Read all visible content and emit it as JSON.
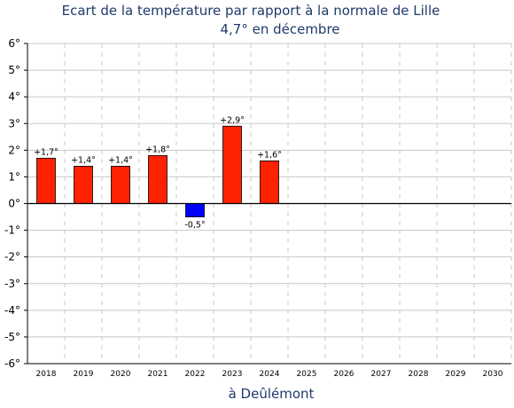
{
  "chart_data": {
    "type": "bar",
    "title": "Ecart de la température par rapport à la normale de Lille",
    "subtitle": "4,7° en décembre",
    "xlabel": "à Deûlémont",
    "ylabel": "",
    "categories": [
      "2018",
      "2019",
      "2020",
      "2021",
      "2022",
      "2023",
      "2024",
      "2025",
      "2026",
      "2027",
      "2028",
      "2029",
      "2030"
    ],
    "values": [
      1.7,
      1.4,
      1.4,
      1.8,
      -0.5,
      2.9,
      1.6,
      null,
      null,
      null,
      null,
      null,
      null
    ],
    "data_labels": [
      "+1,7°",
      "+1,4°",
      "+1,4°",
      "+1,8°",
      "-0,5°",
      "+2,9°",
      "+1,6°",
      "",
      "",
      "",
      "",
      "",
      ""
    ],
    "ylim": [
      -6,
      6
    ],
    "yticks": [
      6,
      5,
      4,
      3,
      2,
      1,
      0,
      -1,
      -2,
      -3,
      -4,
      -5,
      -6
    ],
    "ytick_labels": [
      "6°",
      "5°",
      "4°",
      "3°",
      "2°",
      "1°",
      "0°",
      "-1°",
      "-2°",
      "-3°",
      "-4°",
      "-5°",
      "-6°"
    ],
    "grid": true,
    "colors": {
      "positive": "#ff2200",
      "negative": "#0000ff",
      "grid": "#c8c8c8",
      "title": "#1f3a6b"
    }
  }
}
